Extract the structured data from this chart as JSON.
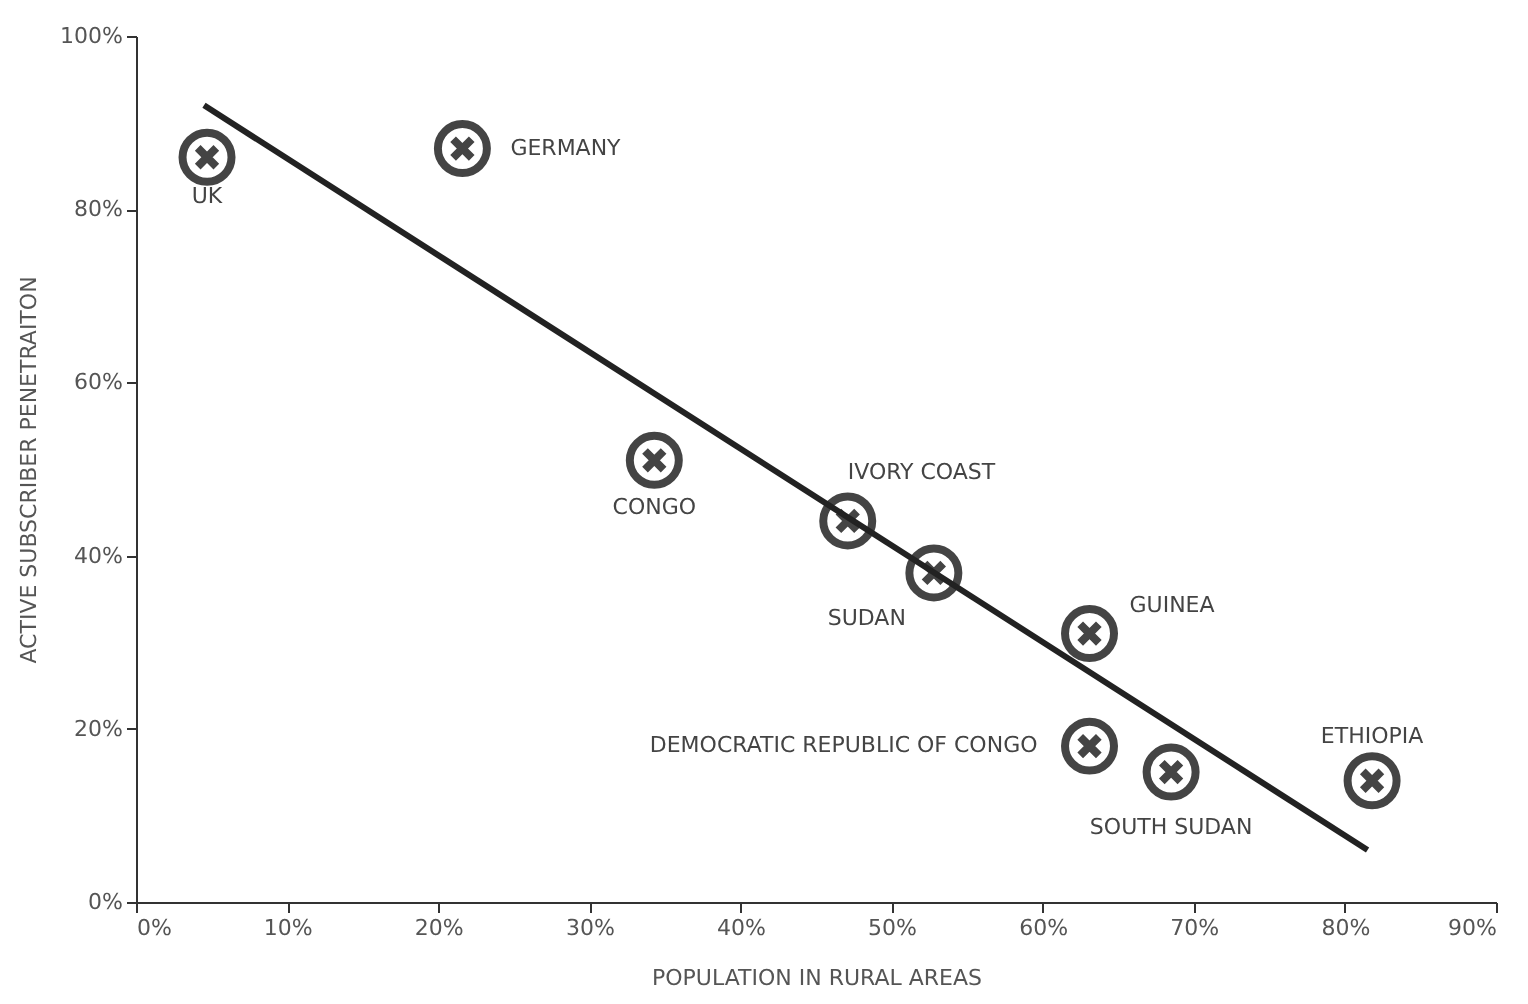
{
  "chart_data": {
    "type": "scatter",
    "xlabel": "POPULATION IN RURAL AREAS",
    "ylabel": "ACTIVE SUBSCRIBER PENETRAITON",
    "grid": false,
    "xlim": [
      0,
      90
    ],
    "ylim": [
      0,
      100
    ],
    "xticks": [
      {
        "value": 0,
        "label": "0%"
      },
      {
        "value": 10,
        "label": "10%"
      },
      {
        "value": 20,
        "label": "20%"
      },
      {
        "value": 30,
        "label": "30%"
      },
      {
        "value": 40,
        "label": "40%"
      },
      {
        "value": 50,
        "label": "50%"
      },
      {
        "value": 60,
        "label": "60%"
      },
      {
        "value": 70,
        "label": "70%"
      },
      {
        "value": 80,
        "label": "80%"
      },
      {
        "value": 90,
        "label": "90%"
      }
    ],
    "yticks": [
      {
        "value": 0,
        "label": "0%"
      },
      {
        "value": 20,
        "label": "20%"
      },
      {
        "value": 40,
        "label": "40%"
      },
      {
        "value": 60,
        "label": "60%"
      },
      {
        "value": 80,
        "label": "80%"
      },
      {
        "value": 100,
        "label": "100%"
      }
    ],
    "series": [
      {
        "type": "scatter",
        "marker": "circle",
        "color": "#444444",
        "x": [
          4.7,
          21.6,
          34.3,
          47.1,
          52.8,
          63.1,
          63.1,
          68.5,
          81.8
        ],
        "values": [
          86,
          87,
          51,
          44,
          38,
          31,
          18,
          15,
          14
        ]
      },
      {
        "type": "line",
        "marker": "none",
        "line_style": "solid",
        "color": "#222222",
        "x": [
          4.5,
          81.5
        ],
        "values": [
          92,
          6
        ]
      }
    ],
    "annotations": [
      {
        "text": "UK",
        "x": 4.7,
        "y": 86
      },
      {
        "text": "GERMANY",
        "x": 21.6,
        "y": 87
      },
      {
        "text": "CONGO",
        "x": 34.3,
        "y": 51
      },
      {
        "text": "IVORY COAST",
        "x": 47.1,
        "y": 44
      },
      {
        "text": "SUDAN",
        "x": 52.8,
        "y": 38
      },
      {
        "text": "GUINEA",
        "x": 63.1,
        "y": 31
      },
      {
        "text": "DEMOCRATIC REPUBLIC OF CONGO",
        "x": 63.1,
        "y": 18
      },
      {
        "text": "SOUTH SUDAN",
        "x": 68.5,
        "y": 15
      },
      {
        "text": "ETHIOPIA",
        "x": 81.8,
        "y": 14
      }
    ]
  }
}
